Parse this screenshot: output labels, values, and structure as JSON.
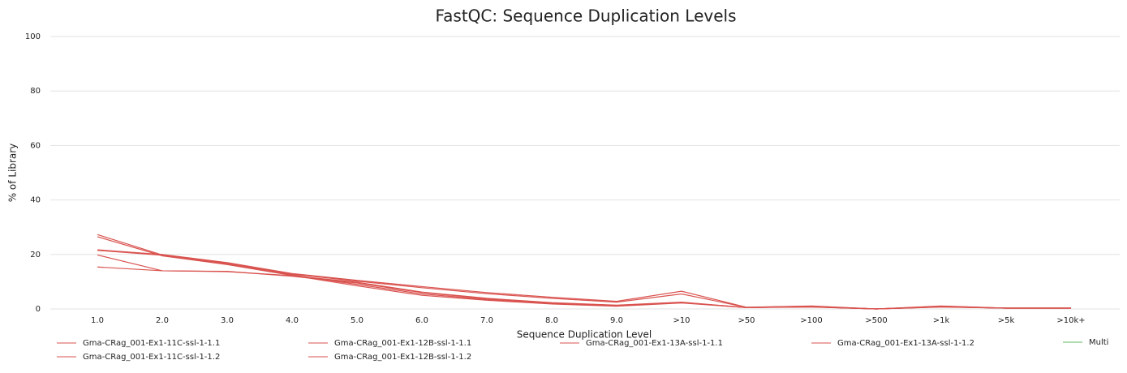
{
  "chart_data": {
    "type": "line",
    "title": "FastQC: Sequence Duplication Levels",
    "x_label": "Sequence Duplication Level",
    "y_label": "% of Library",
    "categories": [
      "1.0",
      "2.0",
      "3.0",
      "4.0",
      "5.0",
      "6.0",
      "7.0",
      "8.0",
      "9.0",
      ">10",
      ">50",
      ">100",
      ">500",
      ">1k",
      ">5k",
      ">10k+"
    ],
    "ylim": [
      0,
      100
    ],
    "yticks": [
      0,
      20,
      40,
      60,
      80,
      100
    ],
    "grid": true,
    "series": [
      {
        "name": "Gma-CRag_001-Ex1-11C-ssl-1-1.1",
        "color": "#d9534f",
        "values": [
          27.3,
          19.8,
          16.5,
          12.5,
          9,
          5.5,
          3.5,
          2,
          1.2,
          2.3,
          0.5,
          0.8,
          0,
          0.8,
          0.3,
          0.3
        ]
      },
      {
        "name": "Gma-CRag_001-Ex1-11C-ssl-1-1.2",
        "color": "#d9534f",
        "values": [
          26.5,
          19.5,
          16.3,
          12.3,
          8.5,
          5,
          3.2,
          1.8,
          1,
          2.2,
          0.5,
          0.7,
          0,
          0.7,
          0.3,
          0.3
        ]
      },
      {
        "name": "Gma-CRag_001-Ex1-12B-ssl-1-1.1",
        "color": "#d9534f",
        "values": [
          21.7,
          20,
          17,
          13,
          10.5,
          8.2,
          6,
          4.3,
          2.8,
          6.5,
          0.6,
          1.1,
          0,
          1.1,
          0.3,
          0.3
        ]
      },
      {
        "name": "Gma-CRag_001-Ex1-12B-ssl-1-1.2",
        "color": "#d9534f",
        "values": [
          21.5,
          19.7,
          16.8,
          12.8,
          10.2,
          7.8,
          5.6,
          3.9,
          2.5,
          5.5,
          0.6,
          1,
          0,
          1,
          0.3,
          0.3
        ]
      },
      {
        "name": "Gma-CRag_001-Ex1-13A-ssl-1-1.1",
        "color": "#d9534f",
        "values": [
          19.8,
          14,
          13.8,
          12,
          9.5,
          6,
          3.8,
          2.2,
          1.3,
          2.4,
          0.5,
          0.8,
          0,
          0.8,
          0.3,
          0.3
        ]
      },
      {
        "name": "Gma-CRag_001-Ex1-13A-ssl-1-1.2",
        "color": "#d9534f",
        "values": [
          15.4,
          14,
          13.7,
          12.2,
          9.8,
          6.2,
          3.9,
          2.3,
          1.4,
          2.5,
          0.5,
          0.8,
          0,
          0.8,
          0.3,
          0.3
        ]
      },
      {
        "name": "Multi",
        "color": "#5cb85c",
        "values": [
          null,
          null,
          null,
          null,
          null,
          null,
          null,
          null,
          null,
          null,
          null,
          null,
          null,
          null,
          null,
          null
        ]
      }
    ]
  }
}
